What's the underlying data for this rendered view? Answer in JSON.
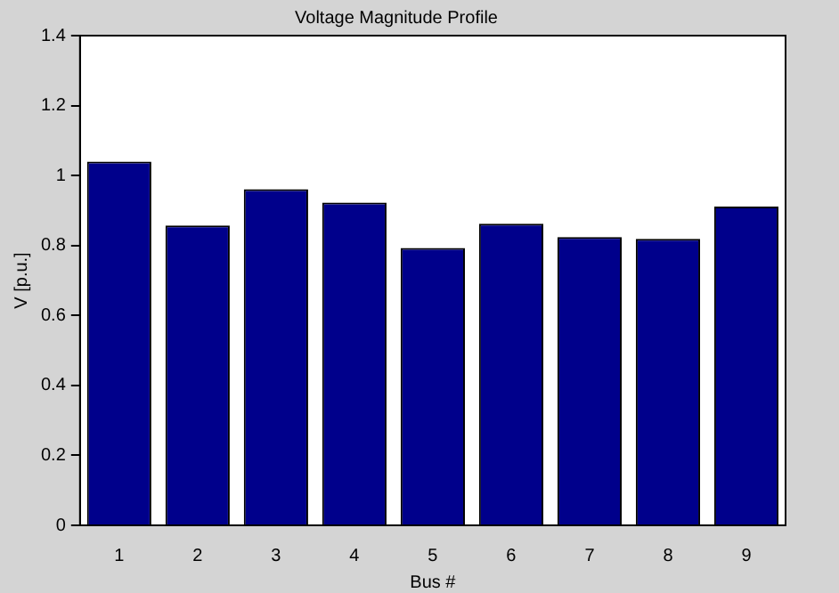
{
  "chart_data": {
    "type": "bar",
    "title": "Voltage Magnitude Profile",
    "xlabel": "Bus #",
    "ylabel": "V [p.u.]",
    "categories": [
      "1",
      "2",
      "3",
      "4",
      "5",
      "6",
      "7",
      "8",
      "9"
    ],
    "values": [
      1.04,
      0.857,
      0.961,
      0.923,
      0.793,
      0.862,
      0.824,
      0.819,
      0.911
    ],
    "color": "#00008b",
    "ylim": [
      0,
      1.4
    ],
    "yticks": [
      0,
      0.2,
      0.4,
      0.6,
      0.8,
      1,
      1.2,
      1.4
    ],
    "grid": false,
    "legend": false
  }
}
